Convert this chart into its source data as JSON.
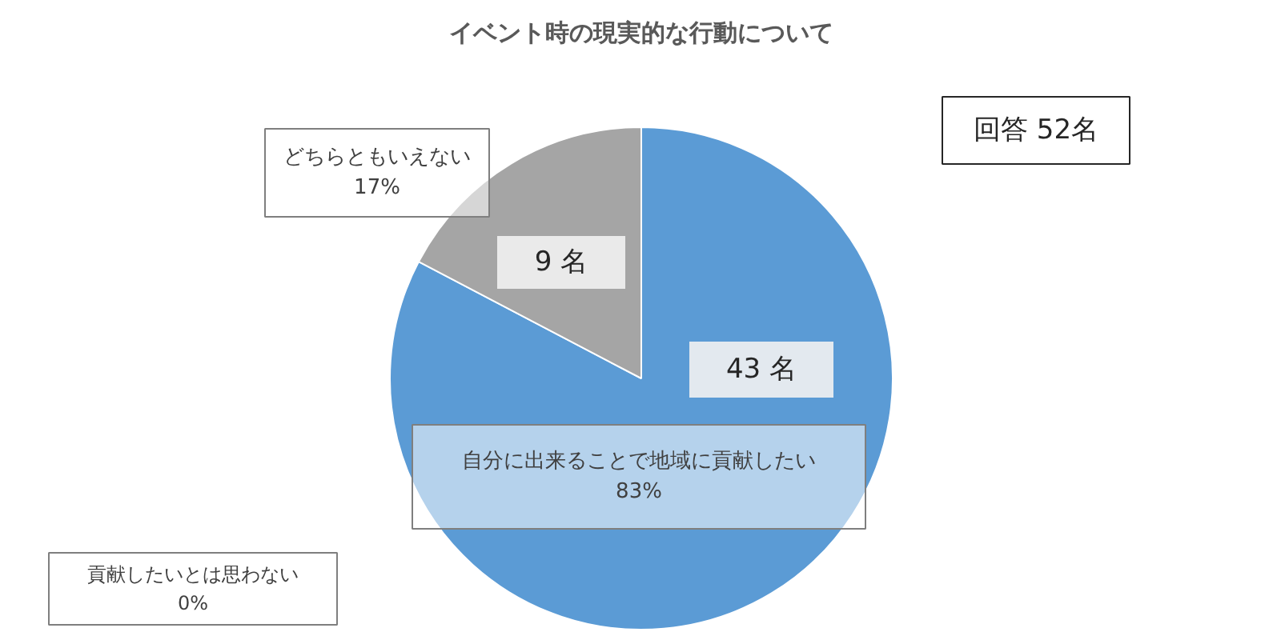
{
  "chart_data": {
    "type": "pie",
    "title": "イベント時の現実的な行動について",
    "categories": [
      "自分に出来ることで地域に貢献したい\n83%",
      "どちらともいえない\n17%",
      "貢献したいとは思わない\n0%"
    ],
    "values": [
      43,
      9,
      0
    ],
    "value_labels": [
      "43 名",
      "9 名",
      null
    ],
    "colors": [
      "#5b9bd5",
      "#a5a5a5",
      "#ed7d31"
    ],
    "annotations": [
      "回答 52名"
    ]
  }
}
